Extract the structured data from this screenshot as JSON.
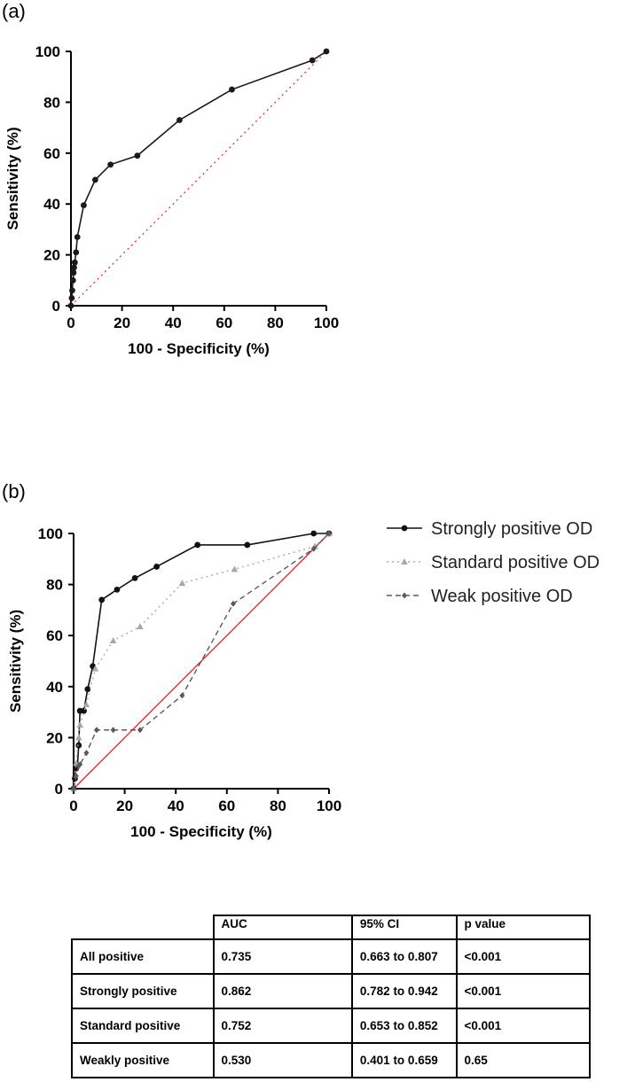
{
  "panels": {
    "a": "(a)",
    "b": "(b)"
  },
  "chart_data": [
    {
      "type": "line",
      "title": "",
      "xlabel": "100 - Specificity (%)",
      "ylabel": "Sensitivity (%)",
      "xlim": [
        0,
        100
      ],
      "ylim": [
        0,
        100
      ],
      "xticks": [
        "0",
        "20",
        "40",
        "60",
        "80",
        "100"
      ],
      "yticks": [
        "0",
        "20",
        "40",
        "60",
        "80",
        "100"
      ],
      "reference_line": {
        "x": [
          0,
          100
        ],
        "y": [
          0,
          100
        ],
        "color": "#e03030",
        "style": "dotted"
      },
      "series": [
        {
          "name": "All positive",
          "color": "#1a1a1a",
          "style": "solid",
          "marker": "circle",
          "x": [
            0,
            0.3,
            0.5,
            0.8,
            1,
            1.2,
            1.5,
            2,
            2.5,
            5,
            9.5,
            15.5,
            26,
            42.5,
            63,
            94.5,
            100
          ],
          "y": [
            0,
            3,
            6,
            10,
            13,
            15,
            17,
            21,
            27,
            39.5,
            49.5,
            55.5,
            59,
            73,
            85,
            96.5,
            100
          ]
        }
      ]
    },
    {
      "type": "line",
      "title": "",
      "xlabel": "100 - Specificity (%)",
      "ylabel": "Sensitivity (%)",
      "xlim": [
        0,
        100
      ],
      "ylim": [
        0,
        100
      ],
      "xticks": [
        "0",
        "20",
        "40",
        "60",
        "80",
        "100"
      ],
      "yticks": [
        "0",
        "20",
        "40",
        "60",
        "80",
        "100"
      ],
      "reference_line": {
        "x": [
          0,
          100
        ],
        "y": [
          0,
          100
        ],
        "color": "#e02020",
        "style": "solid"
      },
      "series": [
        {
          "name": "Strongly positive OD",
          "color": "#111111",
          "style": "solid",
          "marker": "circle",
          "x": [
            0,
            0.5,
            1,
            1.5,
            2,
            2.5,
            4,
            5.5,
            7.5,
            11,
            17,
            24,
            32.5,
            48.5,
            68,
            94,
            100
          ],
          "y": [
            0,
            4,
            8,
            9,
            17,
            30.5,
            30.5,
            39,
            48,
            74,
            78,
            82.5,
            87,
            95.5,
            95.5,
            100,
            100
          ]
        },
        {
          "name": "Standard positive OD",
          "color": "#a8a8a8",
          "style": "dotted",
          "marker": "triangle",
          "x": [
            0,
            1,
            2,
            2.5,
            5,
            8.5,
            15.5,
            26,
            42.5,
            63,
            94.5,
            100
          ],
          "y": [
            0,
            10,
            20,
            25,
            33,
            47,
            58,
            63.5,
            80.5,
            86,
            95,
            100
          ]
        },
        {
          "name": "Weak positive OD",
          "color": "#5a5a5a",
          "style": "dashed",
          "marker": "diamond",
          "x": [
            0,
            1,
            2,
            2.5,
            5,
            9,
            15.5,
            26,
            42.5,
            62.5,
            94,
            100
          ],
          "y": [
            0,
            5,
            9,
            9.5,
            14,
            23,
            23,
            23,
            36.5,
            72.5,
            94,
            100
          ]
        }
      ]
    }
  ],
  "table": {
    "headers": [
      "",
      "AUC",
      "95% CI",
      "p value"
    ],
    "rows": [
      [
        "All positive",
        "0.735",
        "0.663 to 0.807",
        "<0.001"
      ],
      [
        "Strongly positive",
        "0.862",
        "0.782 to 0.942",
        "<0.001"
      ],
      [
        "Standard positive",
        "0.752",
        "0.653 to 0.852",
        "<0.001"
      ],
      [
        "Weakly positive",
        "0.530",
        "0.401 to 0.659",
        "0.65"
      ]
    ]
  }
}
